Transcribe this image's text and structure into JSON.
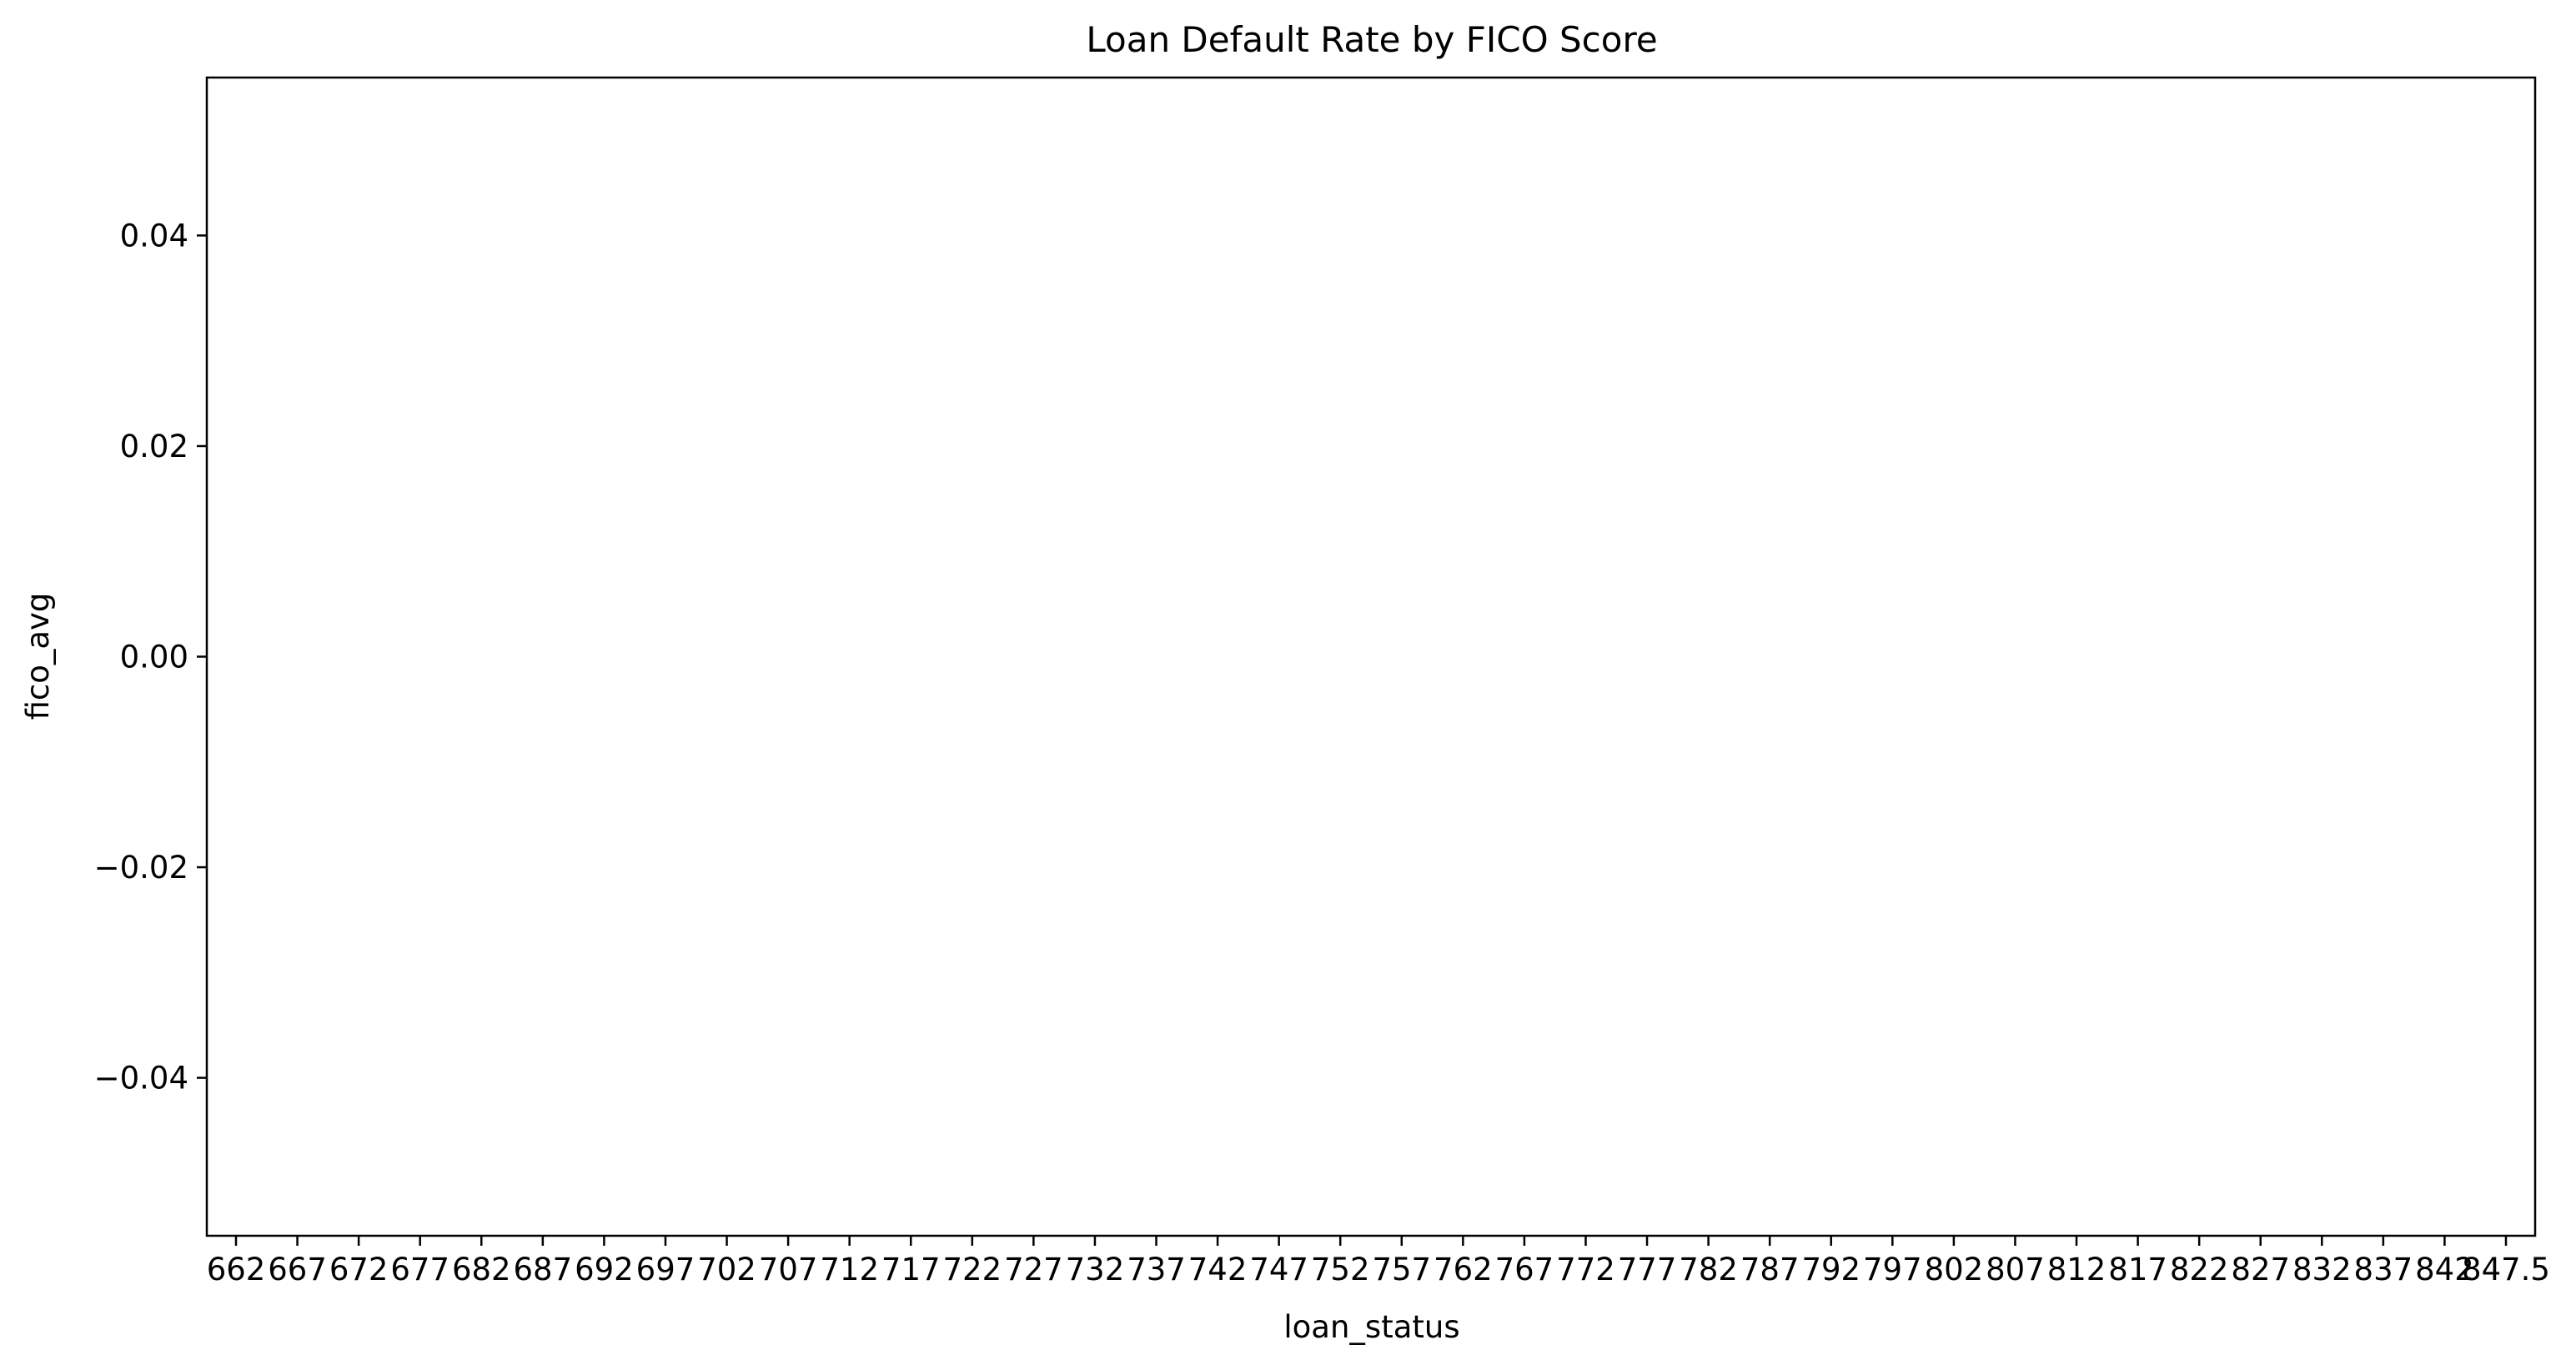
{
  "chart_data": {
    "type": "bar",
    "title": "Loan Default Rate by FICO Score",
    "xlabel": "loan_status",
    "ylabel": "fico_avg",
    "ylim": [
      -0.055,
      0.055
    ],
    "y_ticks": [
      -0.04,
      -0.02,
      0.0,
      0.02,
      0.04
    ],
    "y_tick_labels": [
      "−0.04",
      "−0.02",
      "0.00",
      "0.02",
      "0.04"
    ],
    "categories": [
      "662",
      "667",
      "672",
      "677",
      "682",
      "687",
      "692",
      "697",
      "702",
      "707",
      "712",
      "717",
      "722",
      "727",
      "732",
      "737",
      "742",
      "747",
      "752",
      "757",
      "762",
      "767",
      "772",
      "777",
      "782",
      "787",
      "792",
      "797",
      "802",
      "807",
      "812",
      "817",
      "822",
      "827",
      "832",
      "837",
      "842",
      "847.5"
    ],
    "x_tick_labels": [
      "662",
      "667",
      "672",
      "677",
      "682",
      "687",
      "692",
      "697",
      "702",
      "707",
      "712",
      "717",
      "722",
      "727",
      "732",
      "737",
      "742",
      "747",
      "752",
      "757",
      "762",
      "767",
      "772",
      "777",
      "782",
      "787",
      "792",
      "797",
      "802",
      "807",
      "812",
      "817",
      "822",
      "827",
      "832",
      "837",
      "842",
      "847.5"
    ],
    "values": [
      0,
      0,
      0,
      0,
      0,
      0,
      0,
      0,
      0,
      0,
      0,
      0,
      0,
      0,
      0,
      0,
      0,
      0,
      0,
      0,
      0,
      0,
      0,
      0,
      0,
      0,
      0,
      0,
      0,
      0,
      0,
      0,
      0,
      0,
      0,
      0,
      0,
      0
    ],
    "grid": false,
    "bar_color": "#1f77b4"
  }
}
